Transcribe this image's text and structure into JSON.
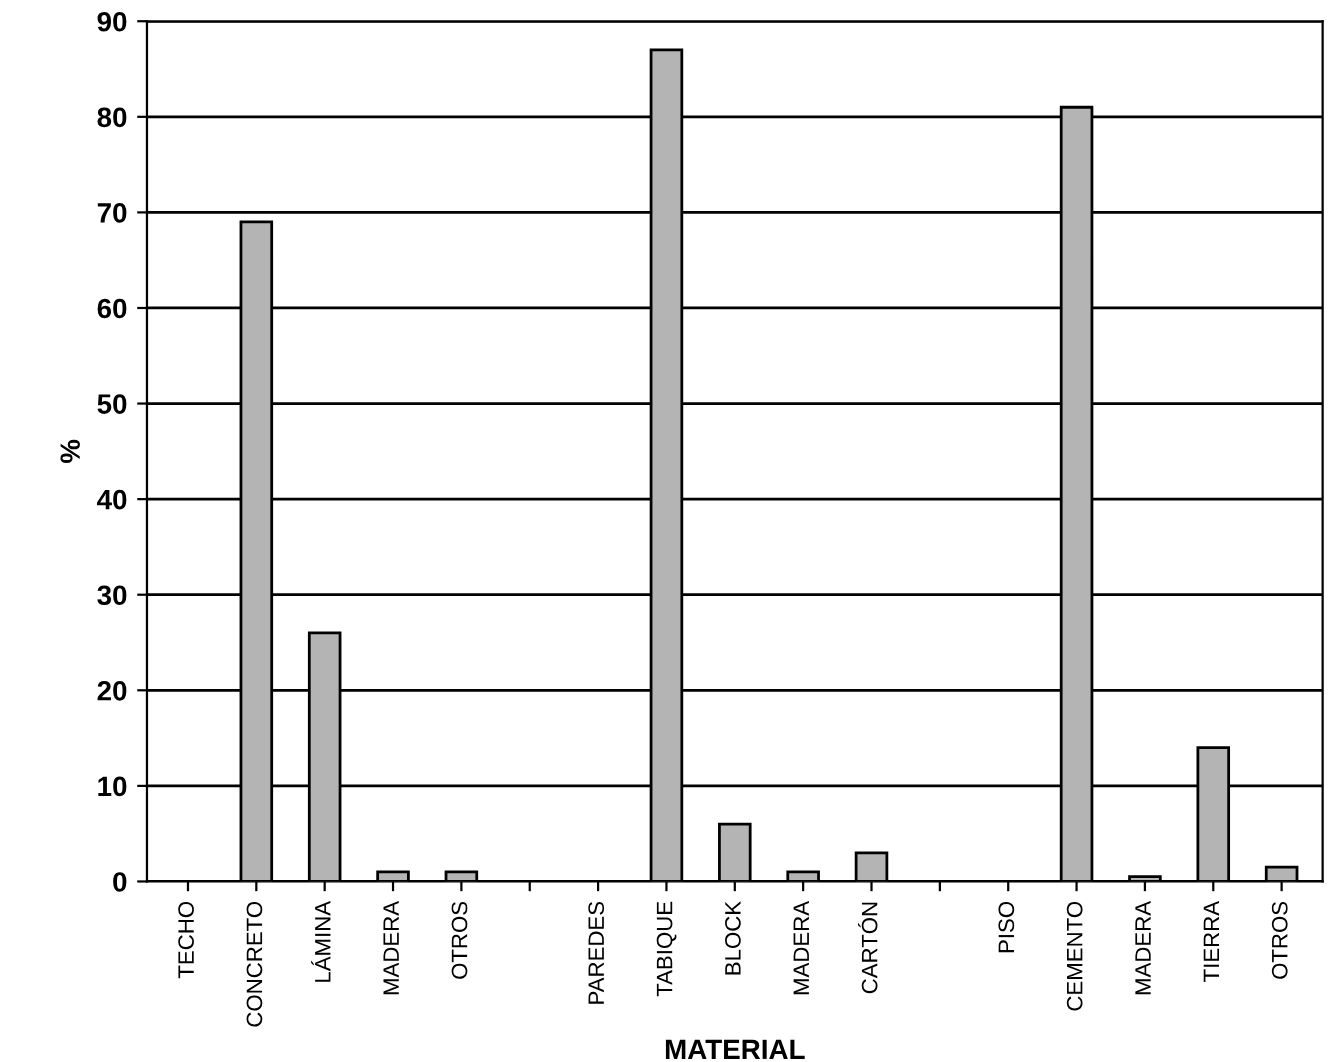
{
  "chart_data": {
    "type": "bar",
    "xlabel": "MATERIAL",
    "ylabel": "%",
    "categories": [
      "TECHO",
      "CONCRETO",
      "LÁMINA",
      "MADERA",
      "OTROS",
      null,
      "PAREDES",
      "TABIQUE",
      "BLOCK",
      "MADERA",
      "CARTÓN",
      null,
      "PISO",
      "CEMENTO",
      "MADERA",
      "TIERRA",
      "OTROS"
    ],
    "values": [
      null,
      69,
      26,
      1,
      1,
      null,
      null,
      87,
      6,
      1,
      3,
      null,
      null,
      81,
      0.5,
      14,
      1.5
    ],
    "color": "#b4b4b4",
    "ylim": [
      0,
      90
    ],
    "yticks": [
      0,
      10,
      20,
      30,
      40,
      50,
      60,
      70,
      80,
      90
    ],
    "grid": "y",
    "legend": false
  }
}
